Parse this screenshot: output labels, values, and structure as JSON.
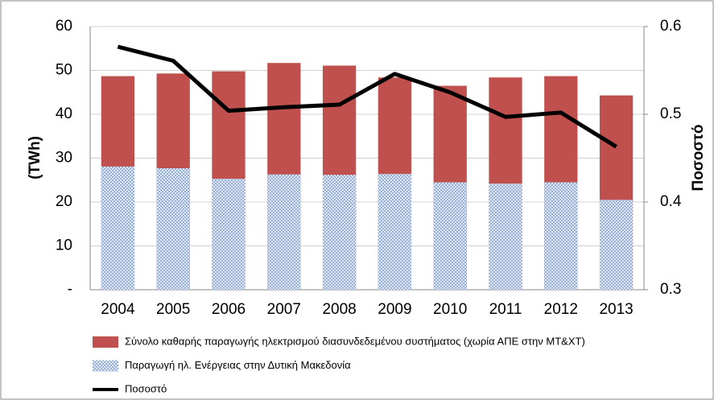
{
  "chart_data": {
    "type": "bar",
    "categories": [
      "2004",
      "2005",
      "2006",
      "2007",
      "2008",
      "2009",
      "2010",
      "2011",
      "2012",
      "2013"
    ],
    "y_label": "(TWh)",
    "y2_label": "Ποσοστό",
    "ylim": [
      0,
      60
    ],
    "yticks": [
      {
        "value": 0,
        "label": "-"
      },
      10,
      20,
      30,
      40,
      50,
      60
    ],
    "y2lim": [
      0.3,
      0.6
    ],
    "y2ticks": [
      0.3,
      0.4,
      0.5,
      0.6
    ],
    "grid": true,
    "legend": "bottom",
    "series": [
      {
        "name": "Σύνολο καθαρής παραγωγής ηλεκτρισμού διασυνδεδεμένου συστήματος (χωρία ΑΠΕ στην ΜΤ&ΧΤ)",
        "type": "bar",
        "color": "#c0504d",
        "values": [
          48.7,
          49.3,
          49.8,
          51.7,
          51.1,
          48.4,
          46.5,
          48.4,
          48.7,
          44.3
        ]
      },
      {
        "name": "Παραγωγή ηλ. Ενέργειας στην Δυτική Μακεδονία",
        "type": "bar",
        "color": "#8eaadb",
        "values": [
          28.1,
          27.7,
          25.3,
          26.3,
          26.2,
          26.4,
          24.5,
          24.2,
          24.5,
          20.5
        ]
      },
      {
        "name": "Ποσοστό",
        "type": "line",
        "axis": "y2",
        "color": "#000000",
        "values": [
          0.577,
          0.561,
          0.504,
          0.508,
          0.511,
          0.546,
          0.525,
          0.497,
          0.502,
          0.463
        ]
      }
    ]
  }
}
